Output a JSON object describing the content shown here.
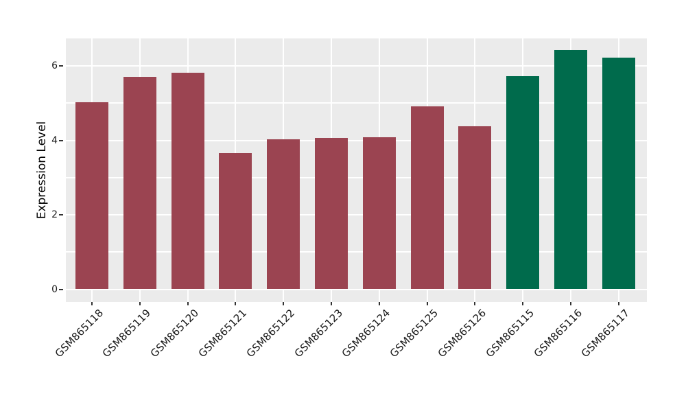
{
  "chart_data": {
    "type": "bar",
    "title": "",
    "xlabel": "",
    "ylabel": "Expression Level",
    "categories": [
      "GSM865118",
      "GSM865119",
      "GSM865120",
      "GSM865121",
      "GSM865122",
      "GSM865123",
      "GSM865124",
      "GSM865125",
      "GSM865126",
      "GSM865115",
      "GSM865116",
      "GSM865117"
    ],
    "values": [
      5.02,
      5.7,
      5.81,
      3.66,
      4.03,
      4.07,
      4.09,
      4.92,
      4.38,
      5.73,
      6.42,
      6.22
    ],
    "bar_colors": [
      "#9B4451",
      "#9B4451",
      "#9B4451",
      "#9B4451",
      "#9B4451",
      "#9B4451",
      "#9B4451",
      "#9B4451",
      "#9B4451",
      "#006B4C",
      "#006B4C",
      "#006B4C"
    ],
    "group_colors": {
      "maroon": "#9B4451",
      "green": "#006B4C"
    },
    "ylim": [
      -0.33,
      6.74
    ],
    "yticks": [
      0,
      2,
      4,
      6
    ],
    "gridline_values": [
      0,
      1,
      2,
      3,
      4,
      5,
      6
    ],
    "grid": true,
    "legend": "none",
    "x_tick_rotation_deg": 45,
    "plot_background": "#EBEBEB",
    "grid_color": "#FFFFFF",
    "tick_mark_color": "#333333",
    "tick_label_color": "#1a1a1a"
  }
}
